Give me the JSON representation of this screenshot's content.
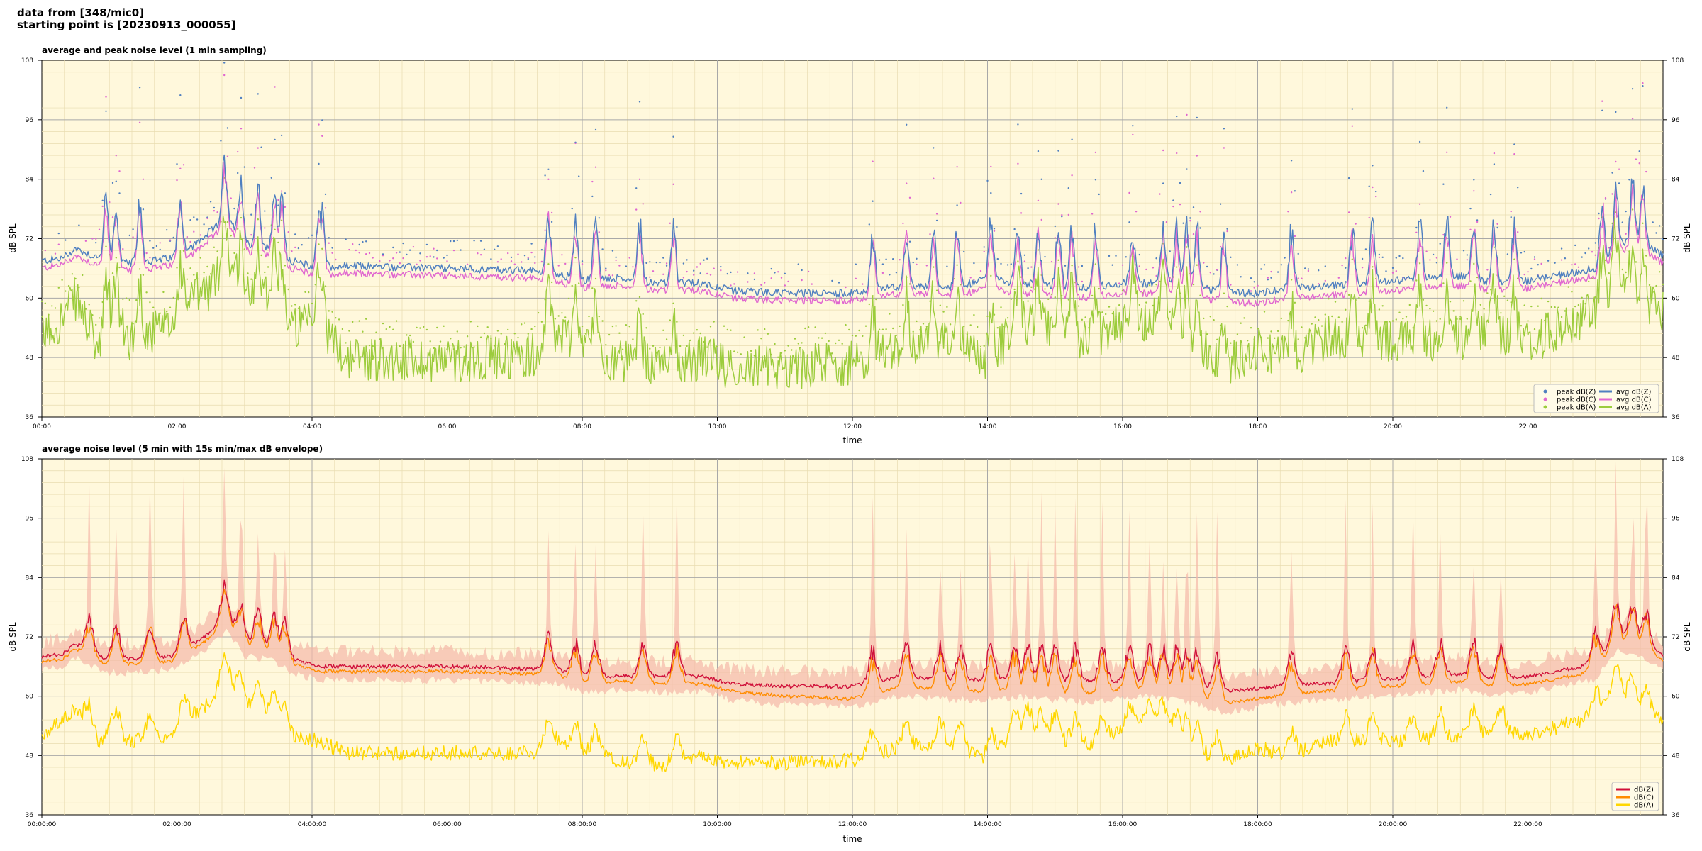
{
  "header": {
    "line1": "data from [348/mic0]",
    "line2": "starting point is [20230913_000055]"
  },
  "colors": {
    "plot_bg": "#fff8dc",
    "avg_z": "#4f7fc0",
    "avg_c": "#e066d0",
    "avg_a": "#9ccc3c",
    "db_z": "#d0103a",
    "db_c": "#ff8c00",
    "db_a": "#ffd700",
    "envelope": "#f5b8a8"
  },
  "chart_data": [
    {
      "type": "line",
      "title": "average and peak noise level (1 min sampling)",
      "xlabel": "time",
      "ylabel": "dB SPL",
      "ylim": [
        36,
        108
      ],
      "xlim_hours": [
        0,
        24
      ],
      "yticks": [
        "36",
        "48",
        "60",
        "72",
        "84",
        "96",
        "108"
      ],
      "xticks": [
        "00:00",
        "02:00",
        "04:00",
        "06:00",
        "08:00",
        "10:00",
        "12:00",
        "14:00",
        "16:00",
        "18:00",
        "20:00",
        "22:00"
      ],
      "grid": true,
      "legend_position": "bottom-right",
      "legend": [
        "peak dB(Z)",
        "peak dB(C)",
        "peak dB(A)",
        "avg dB(Z)",
        "avg dB(C)",
        "avg dB(A)"
      ],
      "baseline_hours": [
        0,
        0.3,
        0.5,
        0.85,
        1.0,
        1.3,
        1.9,
        2.2,
        2.5,
        2.75,
        3.0,
        3.4,
        3.7,
        4.1,
        4.5,
        6.0,
        7.3,
        7.6,
        8.0,
        8.5,
        9.2,
        9.8,
        10.2,
        11.0,
        12.0,
        12.8,
        13.5,
        14.0,
        14.5,
        15.5,
        16.0,
        16.5,
        17.0,
        17.5,
        18.0,
        18.5,
        19.0,
        20.0,
        21.0,
        21.5,
        22.0,
        23.0,
        23.3,
        23.6,
        24.0
      ],
      "series": [
        {
          "name": "avg dB(Z)",
          "values": [
            67.5,
            68.0,
            70.0,
            68.0,
            67.5,
            67.0,
            68.0,
            70.0,
            73.5,
            76.0,
            71.0,
            70.0,
            67.5,
            66.0,
            66.5,
            66.0,
            65.5,
            65.0,
            63.5,
            64.0,
            63.0,
            63.0,
            61.5,
            61.0,
            61.0,
            62.5,
            62.0,
            64.0,
            63.0,
            62.0,
            63.0,
            63.0,
            63.0,
            61.0,
            61.0,
            62.0,
            62.5,
            63.5,
            64.5,
            63.0,
            63.5,
            66.0,
            70.0,
            72.0,
            68.5
          ]
        },
        {
          "name": "avg dB(C)",
          "values": [
            66.0,
            66.8,
            68.5,
            66.5,
            66.0,
            65.5,
            66.5,
            68.5,
            72.0,
            74.5,
            69.5,
            68.5,
            66.0,
            64.5,
            65.0,
            64.5,
            64.0,
            63.5,
            62.0,
            62.5,
            61.5,
            61.5,
            60.0,
            59.5,
            59.5,
            61.0,
            60.5,
            62.0,
            61.0,
            60.0,
            61.0,
            61.0,
            61.0,
            59.0,
            59.0,
            60.0,
            60.5,
            61.5,
            62.5,
            61.5,
            62.0,
            64.5,
            68.5,
            70.5,
            67.0
          ]
        },
        {
          "name": "avg dB(A)",
          "values": [
            52.0,
            56.0,
            60.0,
            49.0,
            56.0,
            52.0,
            54.0,
            60.0,
            62.0,
            68.0,
            60.0,
            62.0,
            54.0,
            55.0,
            48.0,
            47.5,
            48.5,
            53.0,
            51.0,
            47.0,
            46.0,
            48.0,
            46.0,
            46.0,
            47.0,
            50.0,
            51.0,
            47.0,
            55.0,
            51.0,
            55.0,
            56.0,
            52.0,
            46.0,
            50.0,
            48.0,
            52.0,
            51.0,
            52.0,
            53.0,
            51.0,
            57.0,
            64.0,
            60.0,
            57.0
          ]
        }
      ],
      "spikes_hours": [
        0.95,
        1.1,
        1.45,
        2.05,
        2.7,
        2.95,
        3.2,
        3.45,
        3.55,
        4.1,
        4.15,
        7.5,
        7.9,
        8.2,
        8.85,
        9.35,
        12.3,
        12.8,
        13.2,
        13.55,
        14.05,
        14.45,
        14.75,
        15.05,
        15.25,
        15.6,
        16.15,
        16.6,
        16.8,
        16.95,
        17.1,
        17.5,
        18.5,
        19.4,
        19.7,
        20.4,
        20.8,
        21.2,
        21.5,
        21.8,
        23.1,
        23.3,
        23.55,
        23.7
      ]
    },
    {
      "type": "line",
      "title": "average noise level (5 min with 15s min/max dB envelope)",
      "xlabel": "time",
      "ylabel": "dB SPL",
      "ylim": [
        36,
        108
      ],
      "xlim_hours": [
        0,
        24
      ],
      "yticks": [
        "36",
        "48",
        "60",
        "72",
        "84",
        "96",
        "108"
      ],
      "xticks": [
        "00:00:00",
        "02:00:00",
        "04:00:00",
        "06:00:00",
        "08:00:00",
        "10:00:00",
        "12:00:00",
        "14:00:00",
        "16:00:00",
        "18:00:00",
        "20:00:00",
        "22:00:00"
      ],
      "grid": true,
      "legend_position": "bottom-right",
      "legend": [
        "dB(Z)",
        "dB(C)",
        "dB(A)"
      ],
      "baseline_hours": [
        0,
        0.3,
        0.5,
        0.85,
        1.0,
        1.3,
        1.9,
        2.2,
        2.5,
        2.75,
        3.0,
        3.4,
        3.7,
        4.1,
        4.5,
        6.0,
        7.3,
        7.6,
        8.0,
        8.5,
        9.2,
        9.8,
        10.2,
        11.0,
        12.0,
        12.8,
        13.5,
        14.0,
        14.5,
        15.5,
        16.0,
        16.5,
        17.0,
        17.5,
        18.0,
        18.5,
        19.0,
        20.0,
        21.0,
        21.5,
        22.0,
        23.0,
        23.3,
        23.6,
        24.0
      ],
      "series": [
        {
          "name": "dB(Z)",
          "values": [
            68.0,
            68.5,
            70.5,
            68.0,
            67.5,
            67.5,
            68.0,
            70.0,
            73.0,
            76.0,
            71.0,
            70.0,
            67.5,
            66.0,
            66.0,
            66.0,
            65.5,
            65.5,
            64.0,
            64.0,
            64.0,
            64.0,
            62.5,
            62.0,
            62.0,
            64.0,
            63.0,
            63.5,
            63.5,
            63.0,
            63.0,
            63.0,
            62.5,
            61.0,
            61.5,
            62.5,
            62.5,
            63.5,
            64.5,
            63.5,
            64.0,
            66.5,
            72.0,
            72.0,
            68.0
          ]
        },
        {
          "name": "dB(C)",
          "values": [
            67.0,
            67.5,
            69.5,
            67.0,
            66.5,
            66.5,
            67.0,
            69.0,
            72.0,
            75.0,
            70.0,
            69.0,
            66.5,
            65.0,
            65.0,
            65.0,
            64.5,
            64.5,
            62.5,
            63.0,
            62.5,
            62.5,
            61.0,
            60.0,
            59.5,
            62.0,
            61.0,
            61.0,
            61.5,
            60.5,
            61.5,
            61.5,
            60.5,
            58.5,
            59.5,
            60.5,
            61.0,
            62.0,
            63.0,
            62.0,
            62.5,
            65.0,
            71.0,
            70.5,
            67.0
          ]
        },
        {
          "name": "dB(A)",
          "values": [
            52.0,
            55.0,
            58.0,
            50.0,
            53.0,
            51.0,
            52.0,
            56.0,
            59.0,
            64.0,
            58.0,
            57.0,
            52.0,
            51.0,
            48.5,
            48.5,
            48.5,
            51.0,
            49.0,
            47.0,
            46.0,
            48.0,
            46.5,
            46.5,
            47.0,
            50.0,
            50.0,
            47.0,
            53.0,
            50.0,
            53.0,
            55.0,
            50.0,
            46.5,
            49.5,
            48.0,
            51.0,
            51.0,
            52.0,
            53.0,
            52.0,
            56.0,
            62.0,
            58.0,
            55.0
          ]
        }
      ],
      "envelope_peaks_hours": [
        0.7,
        1.1,
        1.6,
        2.1,
        2.7,
        2.95,
        3.2,
        3.45,
        3.6,
        7.5,
        7.9,
        8.2,
        8.9,
        9.4,
        12.3,
        12.8,
        13.3,
        13.6,
        14.05,
        14.4,
        14.6,
        14.8,
        15.0,
        15.3,
        15.7,
        16.1,
        16.4,
        16.6,
        16.8,
        16.95,
        17.1,
        17.4,
        18.5,
        19.3,
        19.7,
        20.3,
        20.7,
        21.2,
        21.6,
        23.0,
        23.3,
        23.55,
        23.75
      ]
    }
  ]
}
